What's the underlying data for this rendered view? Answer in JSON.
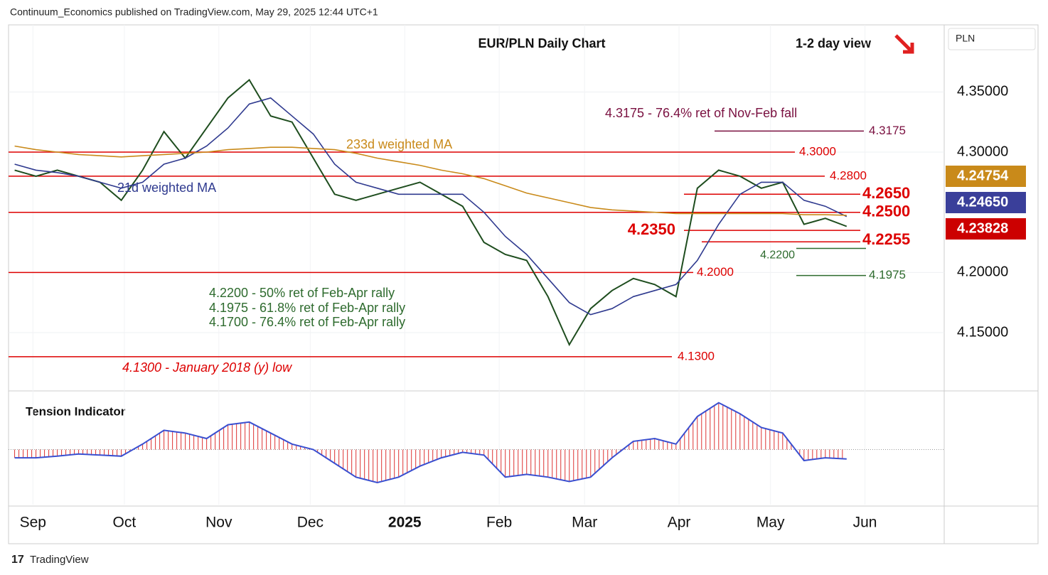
{
  "header": "Continuum_Economics published on TradingView.com, May 29, 2025 12:44 UTC+1",
  "footer": "TradingView",
  "chart_data": {
    "type": "line",
    "title": "EUR/PLN Daily Chart",
    "subtitle": "1-2 day view",
    "currency": "PLN",
    "x": [
      "2024-08-26",
      "2024-09-02",
      "2024-09-09",
      "2024-09-16",
      "2024-09-23",
      "2024-09-30",
      "2024-10-07",
      "2024-10-14",
      "2024-10-21",
      "2024-10-28",
      "2024-11-04",
      "2024-11-11",
      "2024-11-18",
      "2024-11-25",
      "2024-12-02",
      "2024-12-09",
      "2024-12-16",
      "2024-12-23",
      "2024-12-30",
      "2025-01-06",
      "2025-01-13",
      "2025-01-20",
      "2025-01-27",
      "2025-02-03",
      "2025-02-10",
      "2025-02-17",
      "2025-02-24",
      "2025-03-03",
      "2025-03-10",
      "2025-03-17",
      "2025-03-24",
      "2025-03-31",
      "2025-04-07",
      "2025-04-14",
      "2025-04-21",
      "2025-04-28",
      "2025-05-05",
      "2025-05-12",
      "2025-05-19",
      "2025-05-26"
    ],
    "xlim": [
      "2024-08-24",
      "2025-06-27"
    ],
    "xticks": [
      {
        "value": "2024-09-01",
        "label": "Sep"
      },
      {
        "value": "2024-10-01",
        "label": "Oct"
      },
      {
        "value": "2024-11-01",
        "label": "Nov"
      },
      {
        "value": "2024-12-01",
        "label": "Dec"
      },
      {
        "value": "2025-01-01",
        "label": "2025"
      },
      {
        "value": "2025-02-01",
        "label": "Feb"
      },
      {
        "value": "2025-03-01",
        "label": "Mar"
      },
      {
        "value": "2025-04-01",
        "label": "Apr"
      },
      {
        "value": "2025-05-01",
        "label": "May"
      },
      {
        "value": "2025-06-01",
        "label": "Jun"
      }
    ],
    "ylim": [
      4.1028,
      4.4057
    ],
    "yticks": [
      {
        "value": 4.35,
        "label": "4.35000"
      },
      {
        "value": 4.3,
        "label": "4.30000"
      },
      {
        "value": 4.2,
        "label": "4.20000"
      },
      {
        "value": 4.15,
        "label": "4.15000"
      }
    ],
    "series": [
      {
        "name": "EUR/PLN",
        "color": "#1e4d1e",
        "values": [
          4.285,
          4.28,
          4.285,
          4.28,
          4.275,
          4.26,
          4.285,
          4.317,
          4.295,
          4.32,
          4.345,
          4.36,
          4.33,
          4.325,
          4.295,
          4.265,
          4.26,
          4.265,
          4.27,
          4.275,
          4.265,
          4.255,
          4.225,
          4.215,
          4.21,
          4.18,
          4.14,
          4.17,
          4.185,
          4.195,
          4.19,
          4.18,
          4.27,
          4.285,
          4.28,
          4.27,
          4.275,
          4.24,
          4.245,
          4.23828
        ]
      },
      {
        "name": "21d weighted MA",
        "color": "#2f3a8f",
        "values": [
          4.29,
          4.285,
          4.283,
          4.28,
          4.275,
          4.27,
          4.275,
          4.29,
          4.295,
          4.305,
          4.32,
          4.34,
          4.345,
          4.33,
          4.315,
          4.29,
          4.275,
          4.27,
          4.265,
          4.265,
          4.265,
          4.265,
          4.25,
          4.23,
          4.215,
          4.195,
          4.175,
          4.165,
          4.17,
          4.18,
          4.185,
          4.19,
          4.21,
          4.24,
          4.265,
          4.275,
          4.275,
          4.26,
          4.255,
          4.2465
        ]
      },
      {
        "name": "233d weighted MA",
        "color": "#c98a1a",
        "values": [
          4.305,
          4.302,
          4.3,
          4.298,
          4.297,
          4.296,
          4.297,
          4.298,
          4.299,
          4.3,
          4.302,
          4.303,
          4.304,
          4.304,
          4.303,
          4.302,
          4.299,
          4.295,
          4.292,
          4.289,
          4.285,
          4.282,
          4.278,
          4.272,
          4.266,
          4.262,
          4.258,
          4.254,
          4.252,
          4.251,
          4.25,
          4.249,
          4.249,
          4.249,
          4.249,
          4.249,
          4.249,
          4.248,
          4.248,
          4.2475
        ]
      }
    ],
    "price_labels": [
      {
        "value": 4.24754,
        "label": "4.24754",
        "color": "#c98a1a"
      },
      {
        "value": 4.2465,
        "label": "4.24650",
        "color": "#3a3f9a"
      },
      {
        "value": 4.23828,
        "label": "4.23828",
        "color": "#cc0000"
      }
    ],
    "levels": [
      {
        "value": 4.3175,
        "label": "4.3175",
        "color": "#7a1040"
      },
      {
        "value": 4.3,
        "label": "4.3000",
        "color": "#dd0000"
      },
      {
        "value": 4.28,
        "label": "4.2800",
        "color": "#dd0000"
      },
      {
        "value": 4.265,
        "label": "4.2650",
        "color": "#dd0000"
      },
      {
        "value": 4.25,
        "label": "4.2500",
        "color": "#dd0000"
      },
      {
        "value": 4.235,
        "label": "4.2350",
        "color": "#dd0000"
      },
      {
        "value": 4.2255,
        "label": "4.2255",
        "color": "#dd0000"
      },
      {
        "value": 4.22,
        "label": "4.2200",
        "color": "#2e6b2e"
      },
      {
        "value": 4.2,
        "label": "4.2000",
        "color": "#dd0000"
      },
      {
        "value": 4.1975,
        "label": "4.1975",
        "color": "#2e6b2e"
      },
      {
        "value": 4.13,
        "label": "4.1300",
        "color": "#dd0000"
      }
    ],
    "annotations": [
      "4.3175 - 76.4% ret of Nov-Feb fall",
      "233d weighted MA",
      "21d weighted MA",
      "4.2200 - 50% ret of Feb-Apr rally",
      "4.1975 - 61.8% ret of Feb-Apr rally",
      "4.1700 - 76.4% ret of Feb-Apr rally",
      "4.1300 - January 2018 (y) low"
    ],
    "tension": {
      "name": "Tension Indicator",
      "color": "#3a4fd0",
      "bar_color": "#dd3333",
      "ylim": [
        -1,
        1
      ],
      "values": [
        -0.15,
        -0.15,
        -0.12,
        -0.08,
        -0.1,
        -0.12,
        0.1,
        0.35,
        0.3,
        0.2,
        0.45,
        0.5,
        0.3,
        0.1,
        0.0,
        -0.25,
        -0.5,
        -0.6,
        -0.5,
        -0.3,
        -0.15,
        -0.05,
        -0.1,
        -0.5,
        -0.45,
        -0.5,
        -0.58,
        -0.5,
        -0.15,
        0.15,
        0.2,
        0.1,
        0.6,
        0.85,
        0.65,
        0.4,
        0.3,
        -0.2,
        -0.15,
        -0.17
      ]
    }
  }
}
